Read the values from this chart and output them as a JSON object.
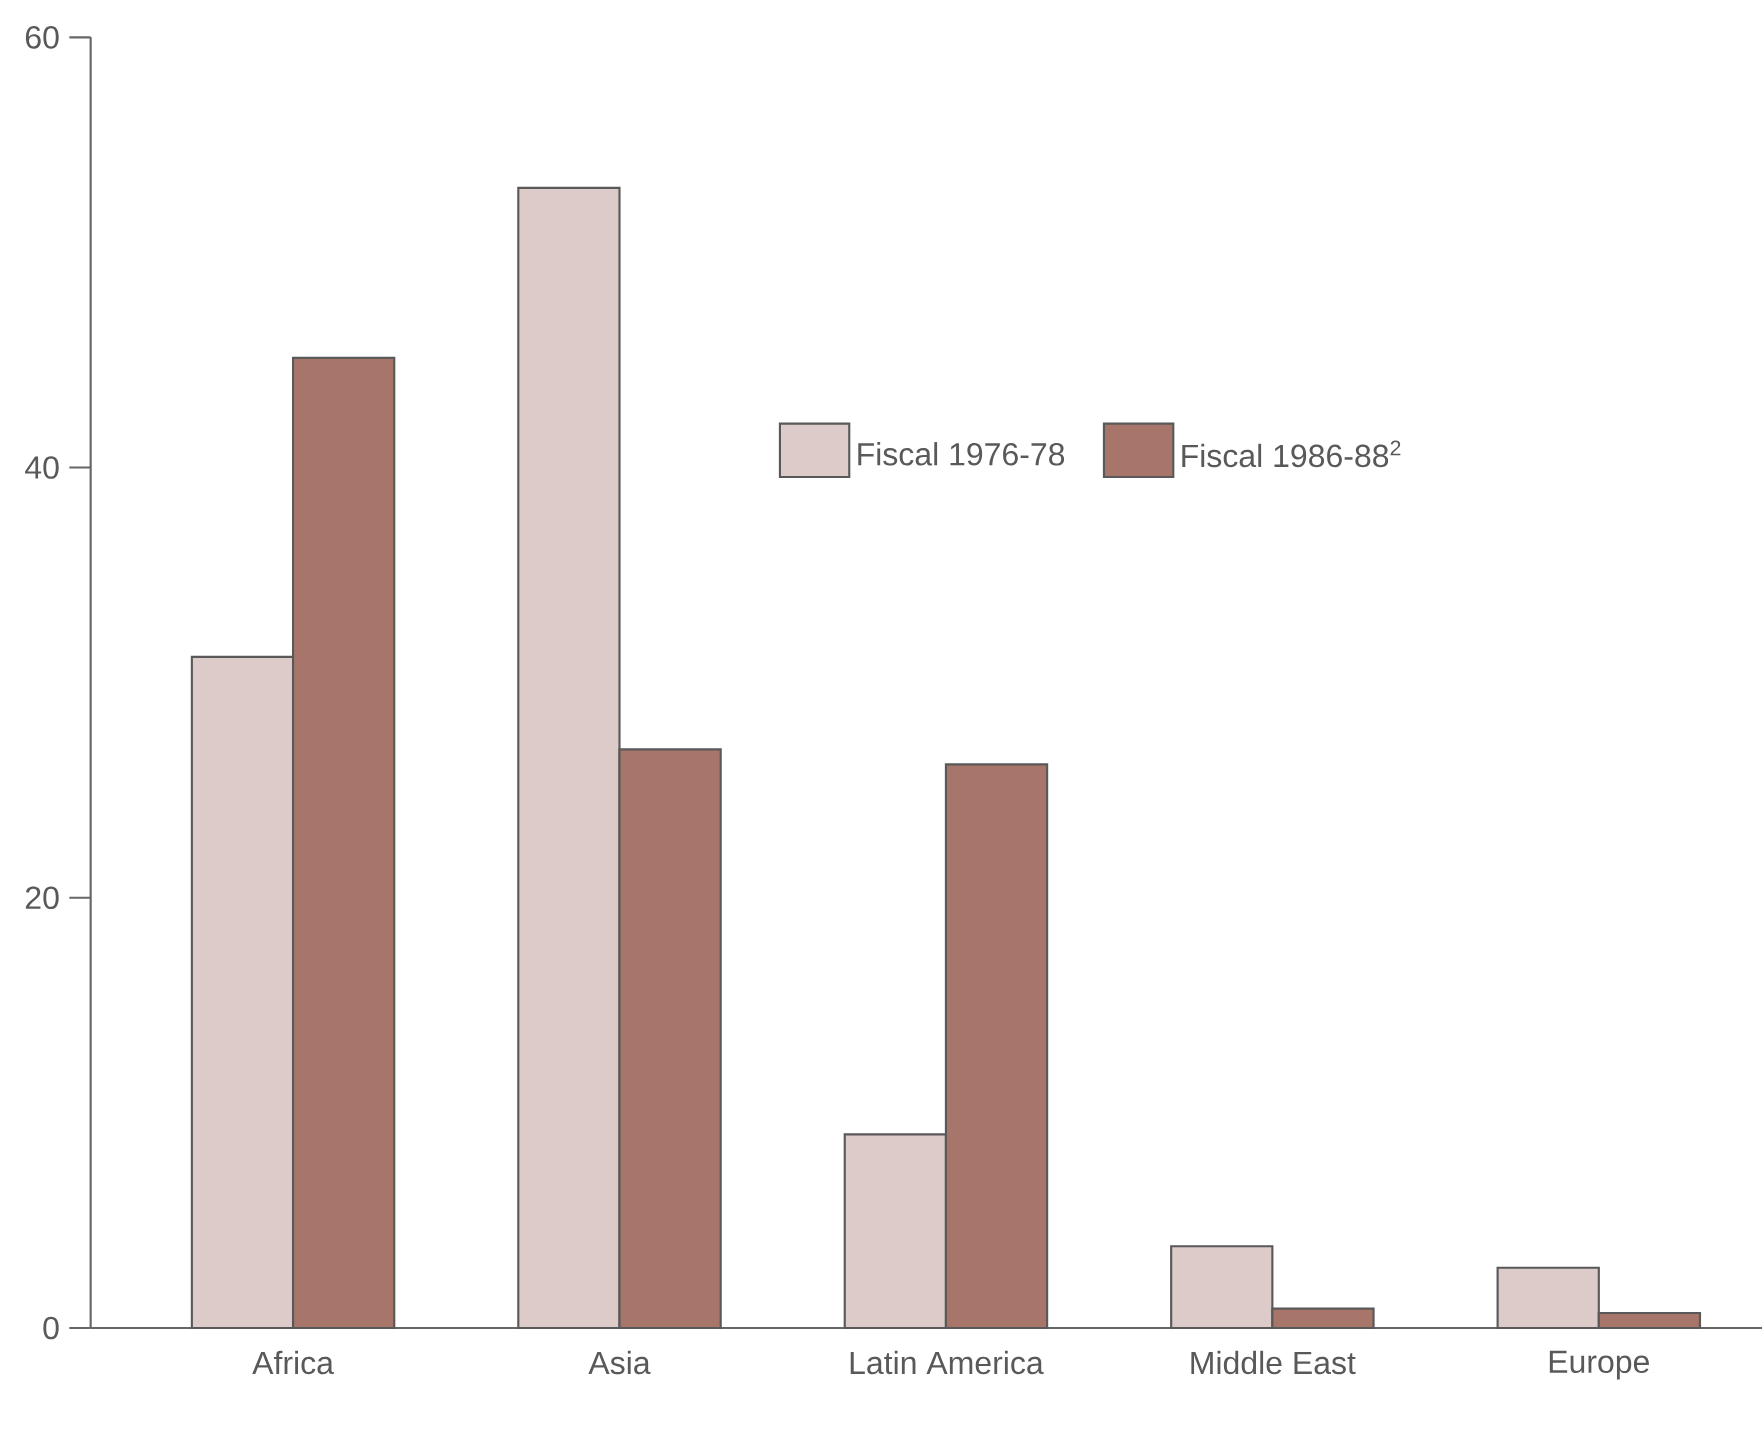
{
  "chart_data": {
    "type": "bar",
    "categories": [
      "Africa",
      "Asia",
      "Latin America",
      "Middle East",
      "Europe"
    ],
    "series": [
      {
        "name": "Fiscal 1976-78",
        "color": "#dccbc8",
        "values": [
          31.2,
          53.0,
          9.0,
          3.8,
          2.8
        ]
      },
      {
        "name": "Fiscal 1986-88$^{2}$",
        "color": "#a8756b",
        "values": [
          45.1,
          26.9,
          26.2,
          0.9,
          0.7
        ]
      }
    ],
    "ylim": [
      0,
      60
    ],
    "yticks": [
      0,
      20,
      40,
      60
    ],
    "grid": false,
    "legend": "right"
  }
}
